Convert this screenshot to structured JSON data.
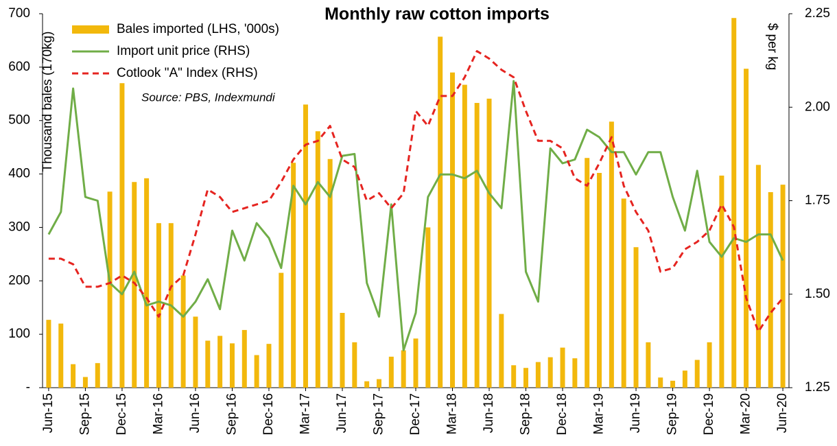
{
  "chart_data": {
    "type": "bar-line",
    "title": "Monthly raw cotton imports",
    "y_label": "Thousand bales  (170kg)",
    "y2_label": "$ per kg",
    "annotation": "Source: PBS, Indexmundi",
    "legend": "upper left",
    "categories": [
      "Jun-15",
      null,
      null,
      "Sep-15",
      null,
      null,
      "Dec-15",
      null,
      null,
      "Mar-16",
      null,
      null,
      "Jun-16",
      null,
      null,
      "Sep-16",
      null,
      null,
      "Dec-16",
      null,
      null,
      "Mar-17",
      null,
      null,
      "Jun-17",
      null,
      null,
      "Sep-17",
      null,
      null,
      "Dec-17",
      null,
      null,
      "Mar-18",
      null,
      null,
      "Jun-18",
      null,
      null,
      "Sep-18",
      null,
      null,
      "Dec-18",
      null,
      null,
      "Mar-19",
      null,
      null,
      "Jun-19",
      null,
      null,
      "Sep-19",
      null,
      null,
      "Dec-19",
      null,
      null,
      "Mar-20",
      null,
      null,
      "Jun-20"
    ],
    "ylim": [
      0,
      700
    ],
    "yticks": [
      {
        "value": 0,
        "label": "-"
      },
      100,
      200,
      300,
      400,
      500,
      600,
      700
    ],
    "y2lim": [
      1.25,
      2.25
    ],
    "y2ticks": [
      1.25,
      {
        "value": 1.5,
        "label": "1.50"
      },
      1.75,
      {
        "value": 2,
        "label": "2.00"
      },
      2.25
    ],
    "series": [
      {
        "name": "Bales imported (LHS, '000s)",
        "kind": "bar",
        "color": "#f2b80c",
        "values": [
          127,
          120,
          44,
          20,
          46,
          367,
          570,
          385,
          392,
          308,
          308,
          210,
          133,
          88,
          97,
          83,
          108,
          61,
          82,
          215,
          421,
          530,
          480,
          428,
          140,
          85,
          12,
          16,
          58,
          70,
          92,
          300,
          657,
          590,
          567,
          533,
          541,
          138,
          42,
          37,
          48,
          57,
          75,
          55,
          430,
          402,
          498,
          354,
          263,
          85,
          19,
          13,
          32,
          52,
          85,
          397,
          692,
          597,
          417,
          366,
          380
        ]
      },
      {
        "name": "Import unit price (RHS)",
        "kind": "line",
        "axis": "y2",
        "color": "#70ad47",
        "dashed": false,
        "values": [
          1.66,
          1.72,
          2.05,
          1.76,
          1.75,
          1.53,
          1.5,
          1.56,
          1.47,
          1.48,
          1.47,
          1.44,
          1.48,
          1.54,
          1.46,
          1.67,
          1.59,
          1.69,
          1.65,
          1.57,
          1.79,
          1.74,
          1.8,
          1.76,
          1.87,
          1.875,
          1.53,
          1.44,
          1.74,
          1.35,
          1.45,
          1.76,
          1.82,
          1.82,
          1.81,
          1.83,
          1.77,
          1.73,
          2.07,
          1.56,
          1.48,
          1.89,
          1.85,
          1.86,
          1.94,
          1.92,
          1.88,
          1.88,
          1.82,
          1.88,
          1.88,
          1.76,
          1.67,
          1.83,
          1.64,
          1.6,
          1.65,
          1.64,
          1.66,
          1.66,
          1.59
        ]
      },
      {
        "name": "Cotlook \"A\" Index (RHS)",
        "kind": "line",
        "axis": "y2",
        "color": "#e52420",
        "dashed": true,
        "values": [
          1.595,
          1.595,
          1.58,
          1.52,
          1.52,
          1.53,
          1.55,
          1.53,
          1.49,
          1.44,
          1.52,
          1.55,
          1.66,
          1.78,
          1.76,
          1.72,
          1.73,
          1.74,
          1.75,
          1.8,
          1.86,
          1.9,
          1.91,
          1.95,
          1.86,
          1.84,
          1.75,
          1.77,
          1.73,
          1.77,
          1.99,
          1.95,
          2.03,
          2.03,
          2.08,
          2.15,
          2.13,
          2.1,
          2.08,
          1.99,
          1.91,
          1.91,
          1.89,
          1.81,
          1.79,
          1.85,
          1.92,
          1.79,
          1.72,
          1.67,
          1.56,
          1.57,
          1.62,
          1.64,
          1.67,
          1.74,
          1.68,
          1.49,
          1.4,
          1.45,
          1.49
        ]
      }
    ]
  }
}
